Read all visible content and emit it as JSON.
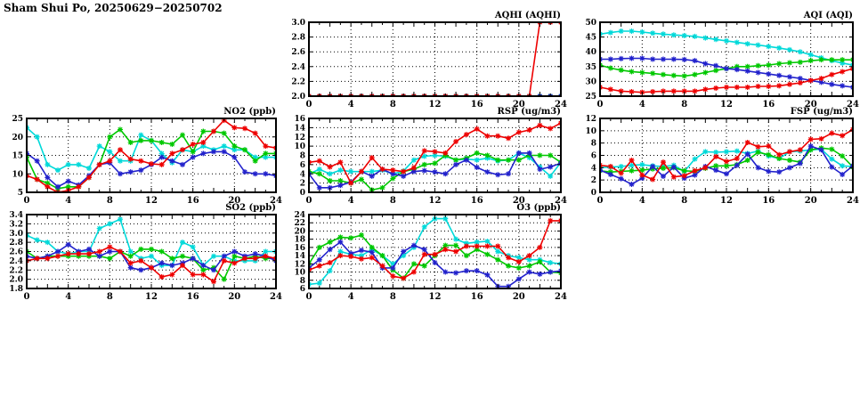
{
  "page": {
    "title": "Sham Shui Po, 20250629−20250702"
  },
  "x_axis": {
    "min": 0,
    "max": 24,
    "tick_labels": [
      "0",
      "4",
      "8",
      "12",
      "16",
      "20",
      "24"
    ],
    "grid_lines": [
      4,
      8,
      12,
      16,
      20
    ],
    "minor_step": 1,
    "major_step": 2
  },
  "chart_data": [
    {
      "id": "aqhi",
      "type": "line",
      "title": "AQHI (AQHI)",
      "xlabel": "",
      "ylabel": "",
      "ylim": [
        2.0,
        3.0
      ],
      "y_ticks": [
        "2.0",
        "2.2",
        "2.4",
        "2.6",
        "2.8",
        "3.0"
      ],
      "x": [
        0,
        1,
        2,
        3,
        4,
        5,
        6,
        7,
        8,
        9,
        10,
        11,
        12,
        13,
        14,
        15,
        16,
        17,
        18,
        19,
        20,
        21,
        22,
        23,
        24
      ],
      "series": [
        {
          "name": "cyan",
          "color": "#00d9d9",
          "values": [
            2,
            2,
            2,
            2,
            2,
            2,
            2,
            2,
            2,
            2,
            2,
            2,
            2,
            2,
            2,
            2,
            2,
            2,
            2,
            2,
            2,
            2,
            2,
            2,
            2
          ]
        },
        {
          "name": "green",
          "color": "#00c800",
          "values": [
            2,
            2,
            2,
            2,
            2,
            2,
            2,
            2,
            2,
            2,
            2,
            2,
            2,
            2,
            2,
            2,
            2,
            2,
            2,
            2,
            2,
            2,
            2,
            2,
            2
          ]
        },
        {
          "name": "blue",
          "color": "#2222cc",
          "values": [
            2,
            2,
            2,
            2,
            2,
            2,
            2,
            2,
            2,
            2,
            2,
            2,
            2,
            2,
            2,
            2,
            2,
            2,
            2,
            2,
            2,
            2,
            2,
            2,
            2
          ]
        },
        {
          "name": "red",
          "color": "#ee0000",
          "values": [
            2,
            2,
            2,
            2,
            2,
            2,
            2,
            2,
            2,
            2,
            2,
            2,
            2,
            2,
            2,
            2,
            2,
            2,
            2,
            2,
            2,
            2,
            3,
            3,
            3
          ]
        }
      ]
    },
    {
      "id": "aqi",
      "type": "line",
      "title": "AQI (AQI)",
      "xlabel": "",
      "ylabel": "",
      "ylim": [
        25,
        50
      ],
      "y_ticks": [
        "25",
        "30",
        "35",
        "40",
        "45",
        "50"
      ],
      "x": [
        0,
        1,
        2,
        3,
        4,
        5,
        6,
        7,
        8,
        9,
        10,
        11,
        12,
        13,
        14,
        15,
        16,
        17,
        18,
        19,
        20,
        21,
        22,
        23,
        24
      ],
      "series": [
        {
          "name": "cyan",
          "color": "#00d9d9",
          "values": [
            46,
            46.5,
            47,
            47,
            46.7,
            46.3,
            46,
            45.7,
            45.5,
            45.2,
            44.7,
            44.2,
            43.7,
            43.2,
            42.7,
            42.3,
            41.8,
            41.3,
            40.7,
            40,
            39,
            38,
            37,
            36.2,
            35.5
          ]
        },
        {
          "name": "green",
          "color": "#00c800",
          "values": [
            35.5,
            34.5,
            33.8,
            33.3,
            33,
            32.7,
            32.3,
            32,
            31.8,
            32.3,
            33,
            33.7,
            34.3,
            35,
            35,
            35.3,
            35.5,
            36,
            36.3,
            36.5,
            37,
            37.3,
            37.3,
            37.3,
            37.3
          ]
        },
        {
          "name": "blue",
          "color": "#2222cc",
          "values": [
            37.5,
            37.5,
            37.7,
            37.8,
            37.8,
            37.5,
            37.5,
            37.5,
            37.4,
            37,
            36,
            35.3,
            34.3,
            34,
            33.5,
            33,
            32.5,
            32,
            31.5,
            31,
            30.3,
            29.7,
            29,
            28.5,
            28
          ]
        },
        {
          "name": "red",
          "color": "#ee0000",
          "values": [
            28,
            27.3,
            26.7,
            26.5,
            26.3,
            26.5,
            26.7,
            26.7,
            26.7,
            26.7,
            27.3,
            27.7,
            28,
            28,
            28,
            28.3,
            28.3,
            28.5,
            29,
            29.5,
            30.3,
            31,
            32.3,
            33.3,
            34.3
          ]
        }
      ]
    },
    {
      "id": "no2",
      "type": "line",
      "title": "NO2 (ppb)",
      "xlabel": "",
      "ylabel": "",
      "ylim": [
        5,
        25
      ],
      "y_ticks": [
        "5",
        "10",
        "15",
        "20",
        "25"
      ],
      "x": [
        0,
        1,
        2,
        3,
        4,
        5,
        6,
        7,
        8,
        9,
        10,
        11,
        12,
        13,
        14,
        15,
        16,
        17,
        18,
        19,
        20,
        21,
        22,
        23,
        24
      ],
      "series": [
        {
          "name": "cyan",
          "color": "#00d9d9",
          "values": [
            22.5,
            20,
            12.5,
            11,
            12.5,
            12.5,
            11.5,
            17.5,
            16,
            13.5,
            13.5,
            20.5,
            19,
            15.5,
            13,
            16.5,
            16,
            17.5,
            16.5,
            17.5,
            16.5,
            16.5,
            14.5,
            14.5,
            14.5
          ]
        },
        {
          "name": "green",
          "color": "#00c800",
          "values": [
            14.5,
            8.5,
            7.5,
            6,
            6.5,
            6.5,
            9,
            12.5,
            20,
            22,
            18.5,
            19,
            19,
            18.5,
            18,
            20.5,
            16,
            21.5,
            21.5,
            21,
            17.5,
            16.5,
            13.5,
            15.5,
            15.5
          ]
        },
        {
          "name": "blue",
          "color": "#2222cc",
          "values": [
            15.5,
            13.5,
            9,
            6.5,
            8,
            7,
            9.5,
            12.5,
            13,
            10,
            10.5,
            11,
            12.5,
            14.5,
            13.5,
            12.5,
            14.5,
            15.5,
            16,
            16,
            14.5,
            10.5,
            10,
            10,
            9.5
          ]
        },
        {
          "name": "red",
          "color": "#ee0000",
          "values": [
            9.5,
            8.5,
            6.5,
            5,
            5.5,
            6.5,
            9,
            12.5,
            13.5,
            16.5,
            14,
            13.5,
            12.7,
            12.5,
            15.5,
            16.5,
            18,
            18.5,
            21.5,
            24.5,
            22.5,
            22.3,
            21,
            17.5,
            17
          ]
        }
      ]
    },
    {
      "id": "rsp",
      "type": "line",
      "title": "RSP (ug/m3)",
      "xlabel": "",
      "ylabel": "",
      "ylim": [
        0,
        16
      ],
      "y_ticks": [
        "0",
        "2",
        "4",
        "6",
        "8",
        "10",
        "12",
        "14",
        "16"
      ],
      "x": [
        0,
        1,
        2,
        3,
        4,
        5,
        6,
        7,
        8,
        9,
        10,
        11,
        12,
        13,
        14,
        15,
        16,
        17,
        18,
        19,
        20,
        21,
        22,
        23,
        24
      ],
      "series": [
        {
          "name": "cyan",
          "color": "#00d9d9",
          "values": [
            4,
            5,
            4,
            4.8,
            4.5,
            4.5,
            4.5,
            4.8,
            4,
            4.6,
            7,
            7.8,
            8,
            7.8,
            7,
            7.2,
            7,
            7.4,
            6.8,
            7,
            8.5,
            7.5,
            5.5,
            3.5,
            6.5
          ]
        },
        {
          "name": "green",
          "color": "#00c800",
          "values": [
            4.5,
            4,
            2.5,
            2.5,
            2,
            2.8,
            0.5,
            1,
            3,
            4.5,
            5,
            6,
            6.3,
            8,
            7,
            7.4,
            8.5,
            8,
            7,
            7,
            7,
            8,
            8,
            8,
            6.5
          ]
        },
        {
          "name": "blue",
          "color": "#2222cc",
          "values": [
            4,
            1,
            1,
            1.5,
            2.2,
            4.5,
            3.5,
            5,
            4,
            3.5,
            4.5,
            4.7,
            4.4,
            4,
            6,
            7,
            5.4,
            4.4,
            3.8,
            4,
            8.5,
            8.5,
            5,
            5.5,
            6.3
          ]
        },
        {
          "name": "red",
          "color": "#ee0000",
          "values": [
            6.5,
            6.8,
            5.5,
            6.5,
            2,
            4.5,
            7.5,
            5,
            4.8,
            4.5,
            5.3,
            9,
            8.8,
            8.5,
            11,
            12.5,
            13.7,
            12.2,
            12.2,
            11.7,
            13,
            13.5,
            14.5,
            13.8,
            15
          ]
        }
      ]
    },
    {
      "id": "fsp",
      "type": "line",
      "title": "FSP (ug/m3)",
      "xlabel": "",
      "ylabel": "",
      "ylim": [
        0,
        12
      ],
      "y_ticks": [
        "0",
        "2",
        "4",
        "6",
        "8",
        "10",
        "12"
      ],
      "x": [
        0,
        1,
        2,
        3,
        4,
        5,
        6,
        7,
        8,
        9,
        10,
        11,
        12,
        13,
        14,
        15,
        16,
        17,
        18,
        19,
        20,
        21,
        22,
        23,
        24
      ],
      "series": [
        {
          "name": "cyan",
          "color": "#00d9d9",
          "values": [
            4,
            4.1,
            4.2,
            4.4,
            4.5,
            4.3,
            4.2,
            4.4,
            3.4,
            5.4,
            6.6,
            6.5,
            6.6,
            6.7,
            6.3,
            6.7,
            5.9,
            5.5,
            6.6,
            6.7,
            6.9,
            7,
            5.4,
            4.3,
            4.2
          ]
        },
        {
          "name": "green",
          "color": "#00c800",
          "values": [
            3.5,
            3.3,
            3.4,
            3.5,
            3.6,
            3.8,
            3.9,
            4,
            3.5,
            3.4,
            3.9,
            4.3,
            4.3,
            4.5,
            5.2,
            6.5,
            6.1,
            5.5,
            5.2,
            4.9,
            6.9,
            7.2,
            7,
            5.9,
            4.1
          ]
        },
        {
          "name": "blue",
          "color": "#2222cc",
          "values": [
            3.6,
            2.9,
            2.2,
            1.3,
            2.3,
            4.2,
            2.6,
            4.1,
            2.3,
            2.8,
            4.2,
            3.6,
            3,
            4.4,
            6.2,
            4,
            3.4,
            3.3,
            4,
            4.7,
            7.5,
            6.9,
            4.1,
            2.9,
            4.3
          ]
        },
        {
          "name": "red",
          "color": "#ee0000",
          "values": [
            4.4,
            4.2,
            3.1,
            5.2,
            2.8,
            2.1,
            4.9,
            2.5,
            2.7,
            3.5,
            4,
            5.8,
            5,
            5.5,
            8.1,
            7.4,
            7.5,
            6.1,
            6.6,
            6.9,
            8.6,
            8.7,
            9.6,
            9.2,
            10.2
          ]
        }
      ]
    },
    {
      "id": "so2",
      "type": "line",
      "title": "SO2 (ppb)",
      "xlabel": "",
      "ylabel": "",
      "ylim": [
        1.8,
        3.4
      ],
      "y_ticks": [
        "1.8",
        "2.0",
        "2.2",
        "2.4",
        "2.6",
        "2.8",
        "3.0",
        "3.2",
        "3.4"
      ],
      "x": [
        0,
        1,
        2,
        3,
        4,
        5,
        6,
        7,
        8,
        9,
        10,
        11,
        12,
        13,
        14,
        15,
        16,
        17,
        18,
        19,
        20,
        21,
        22,
        23,
        24
      ],
      "series": [
        {
          "name": "cyan",
          "color": "#00d9d9",
          "values": [
            2.95,
            2.85,
            2.8,
            2.6,
            2.55,
            2.6,
            2.6,
            3.1,
            3.2,
            3.3,
            2.6,
            2.45,
            2.5,
            2.3,
            2.3,
            2.8,
            2.7,
            2.3,
            2.5,
            2.5,
            2.4,
            2.4,
            2.4,
            2.6,
            2.6
          ]
        },
        {
          "name": "green",
          "color": "#00c800",
          "values": [
            2.6,
            2.45,
            2.5,
            2.5,
            2.5,
            2.5,
            2.5,
            2.5,
            2.45,
            2.6,
            2.5,
            2.65,
            2.65,
            2.6,
            2.45,
            2.5,
            2.45,
            2.2,
            2.25,
            2.0,
            2.5,
            2.45,
            2.5,
            2.45,
            2.45
          ]
        },
        {
          "name": "blue",
          "color": "#2222cc",
          "values": [
            2.5,
            2.45,
            2.5,
            2.6,
            2.75,
            2.6,
            2.65,
            2.5,
            2.6,
            2.6,
            2.25,
            2.2,
            2.25,
            2.35,
            2.3,
            2.35,
            2.45,
            2.3,
            2.2,
            2.5,
            2.6,
            2.5,
            2.55,
            2.5,
            2.4
          ]
        },
        {
          "name": "red",
          "color": "#ee0000",
          "values": [
            2.4,
            2.45,
            2.45,
            2.5,
            2.55,
            2.55,
            2.55,
            2.6,
            2.7,
            2.6,
            2.35,
            2.4,
            2.25,
            2.05,
            2.1,
            2.3,
            2.1,
            2.1,
            1.95,
            2.4,
            2.35,
            2.45,
            2.45,
            2.5,
            2.45
          ]
        }
      ]
    },
    {
      "id": "o3",
      "type": "line",
      "title": "O3 (ppb)",
      "xlabel": "",
      "ylabel": "",
      "ylim": [
        6,
        24
      ],
      "y_ticks": [
        "6",
        "8",
        "10",
        "12",
        "14",
        "16",
        "18",
        "20",
        "22",
        "24"
      ],
      "x": [
        0,
        1,
        2,
        3,
        4,
        5,
        6,
        7,
        8,
        9,
        10,
        11,
        12,
        13,
        14,
        15,
        16,
        17,
        18,
        19,
        20,
        21,
        22,
        23,
        24
      ],
      "series": [
        {
          "name": "cyan",
          "color": "#00d9d9",
          "values": [
            7,
            7.3,
            10.3,
            15,
            14.3,
            14,
            15.5,
            14,
            12,
            14,
            16,
            21,
            23,
            23,
            18,
            17,
            17.3,
            17.5,
            15,
            14,
            13.5,
            13,
            13,
            12.3,
            12
          ]
        },
        {
          "name": "green",
          "color": "#00c800",
          "values": [
            12,
            16,
            17.3,
            18.5,
            18.3,
            19,
            16,
            14,
            10.5,
            8.5,
            12,
            11.5,
            14,
            16.5,
            16.5,
            14,
            15.5,
            14.3,
            13,
            11.5,
            11,
            11.5,
            12.5,
            10,
            9.8
          ]
        },
        {
          "name": "blue",
          "color": "#2222cc",
          "values": [
            11,
            13,
            15.5,
            17.3,
            14.5,
            15.3,
            14.8,
            11,
            11,
            15,
            16.5,
            15.5,
            12.3,
            10,
            9.8,
            10.3,
            10.3,
            9.3,
            6.5,
            6.5,
            8.3,
            10,
            9.5,
            10,
            10.3
          ]
        },
        {
          "name": "red",
          "color": "#ee0000",
          "values": [
            10.5,
            11.5,
            12.3,
            14,
            13.8,
            13.2,
            13.5,
            11.5,
            9,
            8.5,
            10,
            14.3,
            14.3,
            15.5,
            15,
            16.3,
            16.3,
            16.3,
            16.3,
            13.5,
            12.5,
            14,
            16,
            22.5,
            22.5
          ]
        }
      ]
    }
  ]
}
